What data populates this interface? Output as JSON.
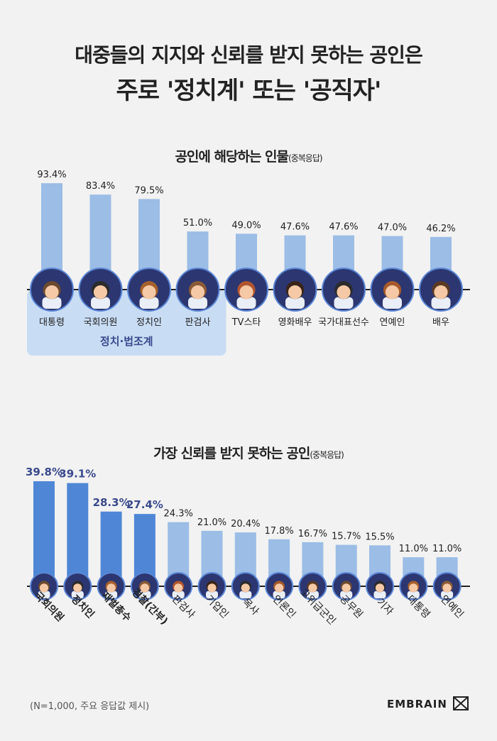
{
  "title_line1": "대중들의 지지와 신뢰를 받지 못하는 공인은",
  "title_line2": "주로 '정치계' 또는 '공직자'",
  "footnote": "(N=1,000, 주요 응답값 제시)",
  "logo_text": "EMBRAIN",
  "colors": {
    "bg": "#f2f2f2",
    "light_bar": "#9bbde6",
    "dark_bar": "#4f87d6",
    "dark_label": "#3a4a8c",
    "group_box": "#c8dcf4",
    "avatar": "#2c3670"
  },
  "chart_data": [
    {
      "type": "bar",
      "title": "공인에 해당하는 인물",
      "title_note": "(중복응답)",
      "categories": [
        "대통령",
        "국회의원",
        "정치인",
        "판검사",
        "TV스타",
        "영화배우",
        "국가대표선수",
        "연예인",
        "배우"
      ],
      "values": [
        93.4,
        83.4,
        79.5,
        51.0,
        49.0,
        47.6,
        47.6,
        47.0,
        46.2
      ],
      "value_labels": [
        "93.4%",
        "83.4%",
        "79.5%",
        "51.0%",
        "49.0%",
        "47.6%",
        "47.6%",
        "47.0%",
        "46.2%"
      ],
      "group": {
        "label": "정치·법조계",
        "categories": [
          "대통령",
          "국회의원",
          "정치인",
          "판검사"
        ]
      },
      "ylim": [
        0,
        100
      ],
      "grid": false
    },
    {
      "type": "bar",
      "title": "가장 신뢰를 받지 못하는 공인",
      "title_note": "(중복응답)",
      "categories": [
        "국회의원",
        "정치인",
        "재벌총수",
        "경찰(간부)",
        "판검사",
        "기업인",
        "목사",
        "언론인",
        "고위급군인",
        "공무원",
        "기자",
        "대통령",
        "연예인"
      ],
      "values": [
        39.8,
        39.1,
        28.3,
        27.4,
        24.3,
        21.0,
        20.4,
        17.8,
        16.7,
        15.7,
        15.5,
        11.0,
        11.0
      ],
      "value_labels": [
        "39.8%",
        "39.1%",
        "28.3%",
        "27.4%",
        "24.3%",
        "21.0%",
        "20.4%",
        "17.8%",
        "16.7%",
        "15.7%",
        "15.5%",
        "11.0%",
        "11.0%"
      ],
      "highlight_top": 4,
      "ylim": [
        0,
        45
      ],
      "grid": false
    }
  ]
}
